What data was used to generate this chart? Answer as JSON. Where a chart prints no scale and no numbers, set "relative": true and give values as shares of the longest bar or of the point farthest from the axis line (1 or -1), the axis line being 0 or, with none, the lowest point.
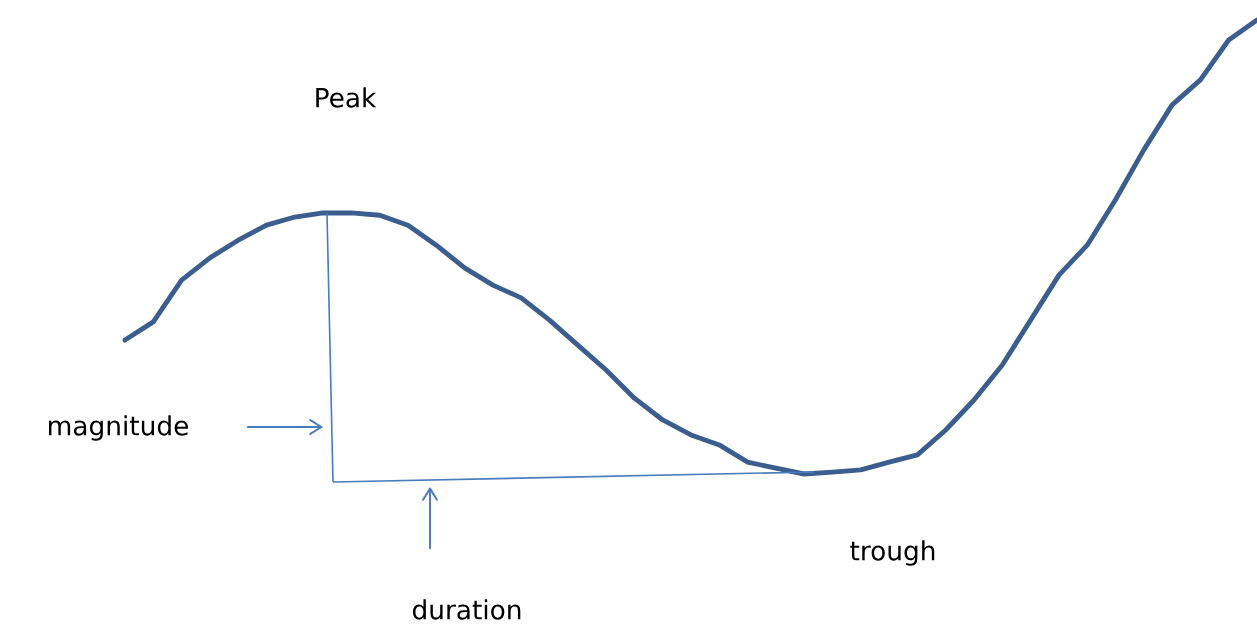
{
  "chart_data": {
    "type": "line",
    "relative": true,
    "categories": [
      null,
      null,
      null,
      null,
      null,
      null,
      null,
      null,
      null,
      null,
      null,
      null,
      null,
      null,
      null,
      null,
      null,
      null,
      null,
      null,
      null,
      null,
      null,
      null,
      null,
      null,
      null,
      null,
      null,
      null,
      null,
      null,
      null,
      null,
      null,
      null,
      null,
      null,
      null,
      null,
      null
    ],
    "series": [
      {
        "color": "#3b5e8f",
        "values": [
          0.295,
          0.335,
          0.427,
          0.476,
          0.515,
          0.548,
          0.566,
          0.575,
          0.575,
          0.57,
          0.548,
          0.504,
          0.454,
          0.416,
          0.388,
          0.339,
          0.284,
          0.229,
          0.167,
          0.119,
          0.086,
          0.064,
          0.026,
          0.013,
          0,
          0.004,
          0.009,
          0.026,
          0.042,
          0.097,
          0.163,
          0.24,
          0.339,
          0.438,
          0.504,
          0.604,
          0.714,
          0.813,
          0.868,
          0.956,
          1.0
        ]
      }
    ],
    "annotations": [
      "Peak",
      "magnitude",
      "duration",
      "trough"
    ]
  }
}
